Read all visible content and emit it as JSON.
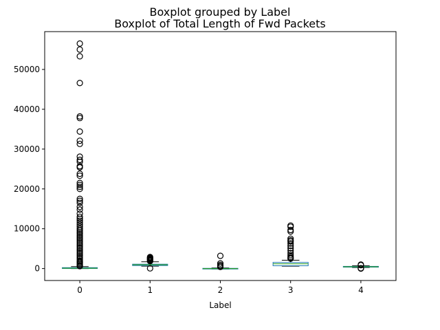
{
  "chart_data": {
    "type": "boxplot",
    "suptitle": "Boxplot grouped by Label",
    "title": "Boxplot of Total Length of Fwd Packets",
    "xlabel": "Label",
    "ylabel": "",
    "categories": [
      "0",
      "1",
      "2",
      "3",
      "4"
    ],
    "ylim": [
      -3000,
      59500
    ],
    "yticks": [
      0,
      10000,
      20000,
      30000,
      40000,
      50000
    ],
    "grid": false,
    "colors": {
      "box": "#1f77b4",
      "median": "#2ca02c",
      "whisker": "#000000",
      "flier": "#000000"
    },
    "boxes": [
      {
        "category": "0",
        "q1": 10,
        "median": 80,
        "q3": 230,
        "whislo": 0,
        "whishi": 500,
        "fliers": [
          56500,
          55000,
          53300,
          46600,
          38200,
          37800,
          34400,
          32100,
          31300,
          28100,
          27300,
          26800,
          25700,
          25400,
          23800,
          23300,
          21500,
          21000,
          20500,
          20000,
          17500,
          17000,
          16500,
          15500,
          14800,
          13800,
          13000,
          12500,
          12000,
          11500,
          11000,
          10500,
          10000,
          9600,
          9200,
          8800,
          8400,
          8000,
          7600,
          7200,
          6800,
          6400,
          6000,
          5600,
          5200,
          4800,
          4400,
          4000,
          3600,
          3200,
          2800,
          2400,
          2000,
          1700,
          1400,
          1100,
          800,
          600
        ]
      },
      {
        "category": "1",
        "q1": 750,
        "median": 950,
        "q3": 1100,
        "whislo": 600,
        "whishi": 1700,
        "fliers": [
          2900,
          2750,
          2600,
          2450,
          2300,
          2150,
          2000,
          1850,
          50
        ]
      },
      {
        "category": "2",
        "q1": -50,
        "median": 0,
        "q3": 60,
        "whislo": -100,
        "whishi": 150,
        "fliers": [
          3200,
          1300,
          900,
          600,
          400
        ]
      },
      {
        "category": "3",
        "q1": 700,
        "median": 1200,
        "q3": 1550,
        "whislo": 600,
        "whishi": 2100,
        "fliers": [
          10800,
          10500,
          9700,
          9300,
          7500,
          7100,
          6800,
          6300,
          5700,
          5100,
          4500,
          3900,
          3400,
          3000,
          2700,
          2500
        ]
      },
      {
        "category": "4",
        "q1": 350,
        "median": 450,
        "q3": 550,
        "whislo": 250,
        "whishi": 700,
        "fliers": [
          1000,
          850,
          100,
          0
        ]
      }
    ]
  }
}
